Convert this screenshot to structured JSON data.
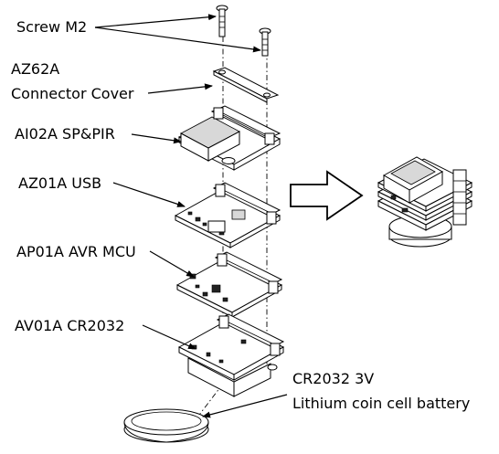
{
  "labels": {
    "screw": "Screw M2",
    "cover_part": "AZ62A",
    "cover_name": "Connector Cover",
    "sensor": "AI02A SP&PIR",
    "usb": "AZ01A USB",
    "mcu": "AP01A AVR MCU",
    "battery_board": "AV01A CR2032",
    "battery_type": "CR2032 3V",
    "battery_desc": "Lithium coin cell battery"
  }
}
